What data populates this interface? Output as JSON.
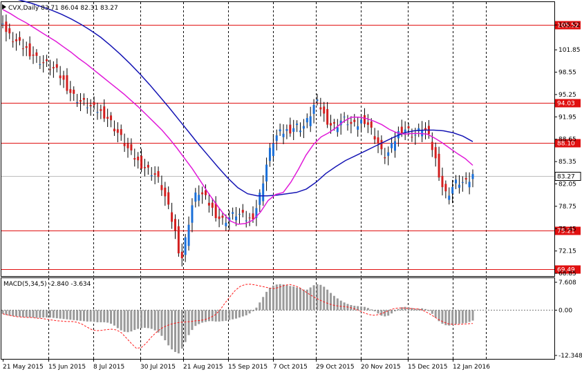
{
  "header": {
    "symbol_line": "CVX,Daily  83.71 86.04 82.31 83.27",
    "macd_line": "MACD(5,34,5) -2.840 -3.634"
  },
  "colors": {
    "bull": "#1a6fd8",
    "bear": "#d21f1f",
    "ma_fast": "#e019d8",
    "ma_slow": "#1414b4",
    "level": "#e01010",
    "macd_hist": "#9a9a9a",
    "macd_signal": "#ff1a1a"
  },
  "chart_data": [
    {
      "type": "candlestick",
      "symbol": "CVX",
      "timeframe": "Daily",
      "ohlc_current": {
        "open": 83.71,
        "high": 86.04,
        "low": 82.31,
        "close": 83.27
      },
      "ylim": [
        68.65,
        108.8
      ],
      "price_ticks": [
        "105.52",
        "101.85",
        "98.55",
        "95.25",
        "91.95",
        "88.65",
        "85.35",
        "82.05",
        "78.75",
        "75.45",
        "72.15",
        "68.85"
      ],
      "x_ticks": [
        "21 May 2015",
        "15 Jun 2015",
        "8 Jul 2015",
        "30 Jul 2015",
        "21 Aug 2015",
        "15 Sep 2015",
        "7 Oct 2015",
        "29 Oct 2015",
        "20 Nov 2015",
        "15 Dec 2015",
        "12 Jan 2016"
      ],
      "levels": [
        "105.52",
        "94.03",
        "88.10",
        "75.21",
        "69.49"
      ],
      "current_price": "83.27",
      "closes": [
        106.2,
        104.5,
        103.8,
        103.4,
        103.0,
        102.6,
        102.2,
        101.9,
        101.5,
        101.1,
        100.6,
        100.2,
        99.9,
        99.7,
        99.3,
        99.0,
        98.6,
        97.9,
        97.2,
        96.4,
        95.6,
        95.0,
        94.6,
        94.2,
        94.0,
        93.7,
        93.4,
        93.1,
        92.9,
        92.6,
        92.3,
        91.8,
        91.1,
        90.3,
        89.6,
        88.8,
        88.0,
        87.2,
        86.4,
        85.9,
        85.3,
        84.9,
        84.5,
        84.1,
        83.8,
        83.4,
        82.6,
        81.5,
        80.1,
        78.4,
        76.7,
        74.9,
        72.4,
        71.2,
        73.8,
        76.5,
        78.9,
        80.3,
        80.8,
        80.4,
        79.8,
        79.1,
        78.3,
        77.6,
        77.0,
        76.7,
        76.8,
        77.1,
        77.4,
        77.6,
        77.5,
        77.2,
        76.9,
        76.8,
        77.4,
        78.6,
        80.4,
        82.6,
        84.9,
        86.9,
        88.4,
        89.1,
        89.5,
        89.7,
        89.9,
        90.1,
        90.4,
        90.6,
        90.4,
        90.6,
        91.3,
        92.4,
        93.6,
        93.9,
        93.3,
        92.2,
        91.4,
        90.8,
        90.6,
        90.9,
        91.4,
        91.5,
        91.2,
        90.8,
        90.6,
        90.8,
        91.3,
        91.5,
        90.9,
        90.0,
        89.1,
        88.0,
        86.7,
        86.2,
        86.6,
        87.5,
        88.6,
        89.6,
        90.1,
        90.2,
        89.9,
        89.4,
        89.3,
        89.8,
        90.3,
        89.9,
        88.8,
        87.3,
        85.6,
        83.6,
        81.7,
        80.6,
        80.8,
        81.6,
        82.2,
        82.3,
        82.2,
        82.1,
        82.6,
        83.27
      ],
      "ma_fast": [
        107.8,
        107.2,
        106.5,
        105.9,
        105.2,
        104.5,
        103.8,
        103.1,
        102.3,
        101.5,
        100.6,
        99.8,
        98.9,
        98.0,
        97.1,
        96.2,
        95.3,
        94.3,
        93.3,
        92.2,
        91.1,
        90.0,
        88.7,
        87.3,
        85.8,
        84.3,
        82.6,
        80.9,
        79.3,
        77.8,
        76.6,
        76.1,
        76.2,
        76.7,
        77.9,
        79.6,
        80.5,
        80.8,
        82.3,
        84.2,
        86.3,
        87.9,
        89.0,
        89.6,
        90.4,
        91.3,
        91.9,
        91.9,
        91.7,
        91.3,
        90.8,
        90.1,
        89.6,
        89.4,
        89.5,
        89.5,
        89.4,
        88.8,
        88.1,
        87.3,
        86.5,
        85.8,
        84.8
      ],
      "ma_slow": [
        109.8,
        109.5,
        109.1,
        108.7,
        108.2,
        107.7,
        107.1,
        106.4,
        105.6,
        104.7,
        103.7,
        102.5,
        101.2,
        99.8,
        98.3,
        96.7,
        95.0,
        93.3,
        91.5,
        89.7,
        87.9,
        86.2,
        84.5,
        82.9,
        81.5,
        80.6,
        80.3,
        80.3,
        80.4,
        80.6,
        80.8,
        81.3,
        82.3,
        83.6,
        84.6,
        85.5,
        86.2,
        86.9,
        87.6,
        88.3,
        89.0,
        89.6,
        89.9,
        90.0,
        90.0,
        89.9,
        89.6,
        89.1,
        88.3
      ],
      "macd": {
        "ylim": [
          -12.348,
          7.608
        ],
        "ticks": [
          "7.608",
          "0.00",
          "-12.348"
        ],
        "histogram": [
          -1.0,
          -1.3,
          -1.5,
          -1.6,
          -1.7,
          -1.8,
          -1.9,
          -1.9,
          -2.0,
          -2.0,
          -2.1,
          -2.1,
          -2.0,
          -2.0,
          -2.0,
          -2.1,
          -2.2,
          -2.3,
          -2.4,
          -2.5,
          -2.6,
          -2.7,
          -2.8,
          -2.9,
          -3.0,
          -3.1,
          -3.1,
          -3.2,
          -3.3,
          -3.3,
          -3.3,
          -3.4,
          -3.7,
          -4.2,
          -4.9,
          -5.5,
          -5.9,
          -6.0,
          -5.8,
          -5.4,
          -5.1,
          -4.9,
          -4.8,
          -4.9,
          -5.1,
          -5.5,
          -6.1,
          -7.0,
          -8.2,
          -9.6,
          -10.7,
          -11.4,
          -11.8,
          -10.5,
          -8.7,
          -6.8,
          -5.4,
          -4.3,
          -3.8,
          -3.4,
          -3.2,
          -3.0,
          -3.0,
          -3.1,
          -3.1,
          -3.0,
          -2.9,
          -2.7,
          -2.5,
          -2.3,
          -2.0,
          -1.7,
          -1.4,
          -0.9,
          -0.3,
          0.7,
          2.1,
          3.6,
          5.0,
          6.1,
          6.7,
          7.0,
          7.1,
          7.0,
          6.8,
          6.6,
          6.5,
          6.2,
          6.0,
          5.6,
          5.6,
          6.2,
          6.8,
          7.1,
          6.9,
          6.4,
          5.6,
          4.7,
          3.9,
          3.2,
          2.6,
          2.1,
          1.7,
          1.4,
          1.2,
          1.1,
          1.0,
          0.9,
          0.6,
          0.2,
          -0.3,
          -0.9,
          -1.5,
          -1.7,
          -1.5,
          -0.9,
          -0.3,
          0.3,
          0.8,
          0.9,
          0.8,
          0.6,
          0.4,
          0.4,
          0.5,
          0.3,
          -0.2,
          -1.0,
          -2.0,
          -3.0,
          -3.7,
          -4.1,
          -4.2,
          -4.0,
          -3.8,
          -3.7,
          -3.6,
          -3.5,
          -3.2,
          -2.84
        ],
        "signal": [
          -1.0,
          -1.3,
          -1.6,
          -1.8,
          -1.9,
          -2.0,
          -2.0,
          -2.2,
          -2.3,
          -2.5,
          -2.7,
          -2.9,
          -3.0,
          -3.1,
          -3.1,
          -3.3,
          -3.8,
          -4.6,
          -5.3,
          -5.6,
          -5.5,
          -5.3,
          -5.2,
          -5.4,
          -6.2,
          -7.6,
          -9.1,
          -10.4,
          -10.2,
          -9.0,
          -7.4,
          -6.1,
          -5.0,
          -4.3,
          -3.8,
          -3.5,
          -3.3,
          -3.2,
          -3.1,
          -2.9,
          -2.8,
          -2.5,
          -2.0,
          -1.2,
          0.2,
          2.1,
          3.8,
          5.4,
          6.5,
          7.0,
          7.1,
          6.9,
          6.6,
          6.3,
          6.0,
          5.9,
          6.3,
          6.8,
          7.0,
          6.7,
          6.1,
          5.2,
          4.3,
          3.5,
          2.8,
          2.2,
          1.7,
          1.3,
          1.1,
          1.0,
          0.8,
          0.4,
          -0.1,
          -0.7,
          -1.2,
          -1.4,
          -1.2,
          -0.7,
          -0.1,
          0.4,
          0.6,
          0.6,
          0.5,
          0.4,
          0.3,
          -0.1,
          -0.8,
          -1.6,
          -2.5,
          -3.2,
          -3.7,
          -3.9,
          -3.9,
          -3.8,
          -3.7,
          -3.634
        ]
      }
    }
  ]
}
